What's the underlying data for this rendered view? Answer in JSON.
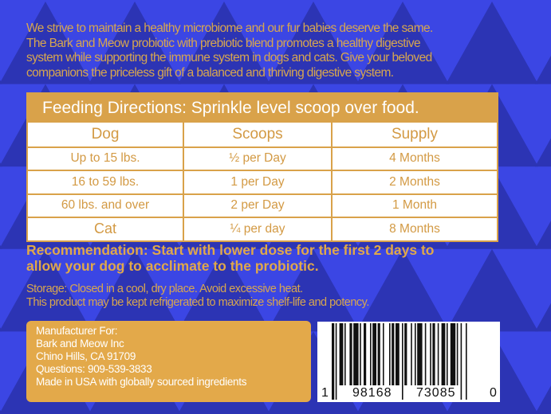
{
  "colors": {
    "background": "#3b46e4",
    "triangles": "#2c34b4",
    "gold": "#d9a24a",
    "white": "#ffffff"
  },
  "intro": [
    "We strive to maintain a healthy microbiome and our fur babies deserve the same.",
    "The Bark and Meow probiotic with prebiotic blend promotes a healthy digestive",
    "system while supporting the immune system in dogs and cats.  Give your beloved",
    "companions the priceless gift of a balanced and thriving digestive system."
  ],
  "feeding": {
    "title": "Feeding Directions: Sprinkle level scoop over food.",
    "headers": [
      "Dog",
      "Scoops",
      "Supply"
    ],
    "rows": [
      [
        "Up to 15 lbs.",
        "½ per Day",
        "4 Months"
      ],
      [
        "16 to 59 lbs.",
        "1 per Day",
        "2 Months"
      ],
      [
        "60 lbs. and over",
        "2 per Day",
        "1 Month"
      ],
      [
        "Cat",
        "¼ per day",
        "8 Months"
      ]
    ]
  },
  "recommendation": [
    "Recommendation:  Start with lower dose for the first 2 days to",
    "allow your dog to acclimate to the probiotic."
  ],
  "storage": [
    "Storage: Closed in a cool, dry place.  Avoid excessive heat.",
    "This product may be kept refrigerated to maximize shelf-life and potency."
  ],
  "manufacturer": [
    "Manufacturer For:",
    "Bark and Meow Inc",
    "Chino Hills, CA 91709",
    "Questions: 909-539-3833",
    "Made in USA with globally sourced ingredients"
  ],
  "barcode": {
    "digits": [
      "1",
      "98168",
      "73085",
      "0"
    ]
  }
}
